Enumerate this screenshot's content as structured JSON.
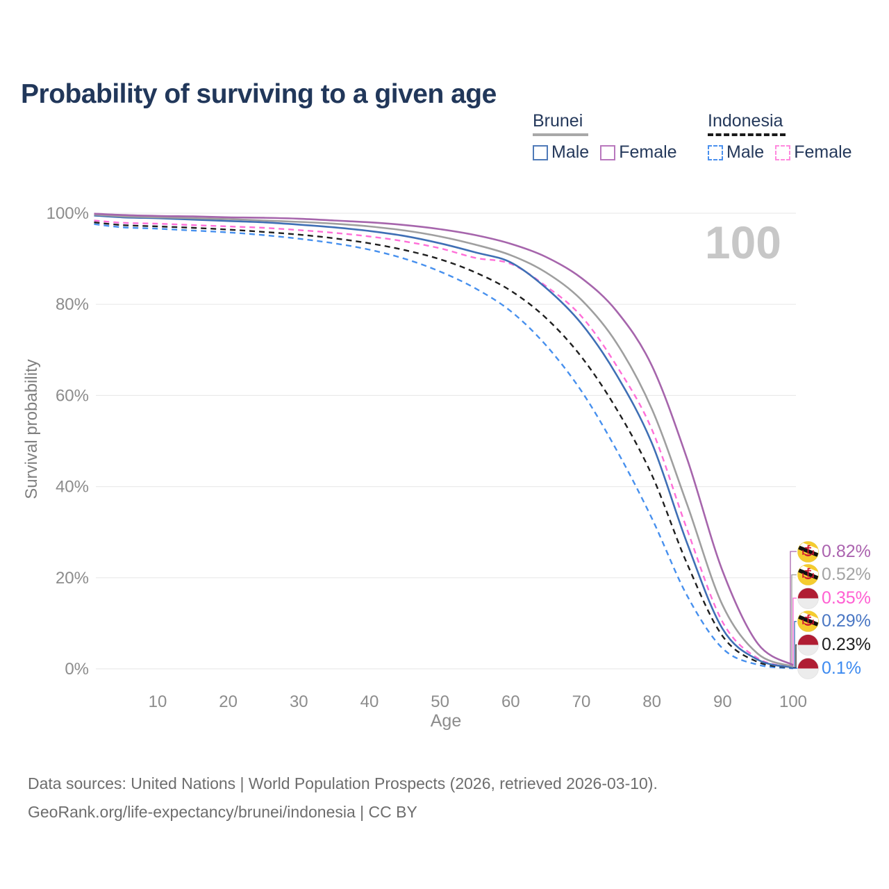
{
  "title": "Probability of surviving to a given age",
  "watermark": "100",
  "legend": {
    "groups": [
      {
        "name": "Brunei",
        "line_style": "solid",
        "line_color": "#a8a8a8",
        "underline_width": 80,
        "items": [
          {
            "label": "Male",
            "color": "#4f7ab8",
            "dashed": false
          },
          {
            "label": "Female",
            "color": "#b877bd",
            "dashed": false
          }
        ]
      },
      {
        "name": "Indonesia",
        "line_style": "dashed",
        "line_color": "#1a1a1a",
        "underline_width": 112,
        "items": [
          {
            "label": "Male",
            "color": "#4a90ee",
            "dashed": true
          },
          {
            "label": "Female",
            "color": "#ff8ade",
            "dashed": true
          }
        ]
      }
    ]
  },
  "chart_data": {
    "type": "line",
    "title": "Probability of surviving to a given age",
    "xlabel": "Age",
    "ylabel": "Survival probability",
    "xlim": [
      1,
      100
    ],
    "ylim": [
      0,
      100
    ],
    "grid": true,
    "legend_position": "top-right",
    "x_ticks": [
      10,
      20,
      30,
      40,
      50,
      60,
      70,
      80,
      90,
      100
    ],
    "y_ticks": [
      {
        "value": 0,
        "label": "0%"
      },
      {
        "value": 20,
        "label": "20%"
      },
      {
        "value": 40,
        "label": "40%"
      },
      {
        "value": 60,
        "label": "60%"
      },
      {
        "value": 80,
        "label": "80%"
      },
      {
        "value": 100,
        "label": "100%"
      }
    ],
    "x": [
      1,
      5,
      10,
      15,
      20,
      25,
      30,
      35,
      40,
      45,
      50,
      55,
      60,
      65,
      70,
      75,
      80,
      85,
      90,
      95,
      100
    ],
    "series": [
      {
        "name": "Indonesia Male",
        "country": "Indonesia",
        "sex": "Male",
        "color": "#4790ee",
        "dashed": true,
        "flag": "indonesia",
        "end_label": "0.1%",
        "end_label_color": "#3c8af0",
        "values": [
          97.6,
          96.9,
          96.6,
          96.2,
          95.8,
          95.2,
          94.4,
          93.4,
          92.0,
          90.0,
          87.2,
          83.5,
          78.5,
          71.0,
          61.0,
          48.0,
          33.0,
          16.0,
          4.5,
          0.9,
          0.1
        ]
      },
      {
        "name": "Indonesia",
        "country": "Indonesia",
        "sex": "Both",
        "color": "#1f1f1f",
        "dashed": true,
        "flag": "indonesia",
        "end_label": "0.23%",
        "end_label_color": "#202020",
        "values": [
          98.0,
          97.4,
          97.1,
          96.8,
          96.4,
          95.9,
          95.3,
          94.5,
          93.4,
          91.9,
          89.9,
          87.0,
          83.0,
          77.0,
          68.5,
          57.0,
          42.5,
          23.0,
          7.2,
          1.5,
          0.23
        ]
      },
      {
        "name": "Indonesia Female",
        "country": "Indonesia",
        "sex": "Female",
        "color": "#ff6ed8",
        "dashed": true,
        "flag": "indonesia",
        "end_label": "0.35%",
        "end_label_color": "#ff5fd2",
        "values": [
          98.4,
          97.9,
          97.7,
          97.4,
          97.1,
          96.8,
          96.3,
          95.7,
          94.9,
          93.8,
          92.3,
          90.2,
          88.9,
          84.0,
          77.4,
          66.5,
          52.5,
          30.5,
          10.3,
          2.3,
          0.35
        ]
      },
      {
        "name": "Brunei Male",
        "country": "Brunei",
        "sex": "Male",
        "color": "#3f6fb5",
        "dashed": false,
        "flag": "brunei",
        "end_label": "0.29%",
        "end_label_color": "#4a77c4",
        "values": [
          99.5,
          99.1,
          98.9,
          98.6,
          98.3,
          98.0,
          97.5,
          96.9,
          96.1,
          95.0,
          93.4,
          91.4,
          89.2,
          83.6,
          75.8,
          64.5,
          49.5,
          27.5,
          8.8,
          2.0,
          0.29
        ]
      },
      {
        "name": "Brunei",
        "country": "Brunei",
        "sex": "Both",
        "color": "#9f9f9f",
        "dashed": false,
        "flag": "brunei",
        "end_label": "0.52%",
        "end_label_color": "#a3a3a3",
        "values": [
          99.7,
          99.3,
          99.1,
          98.9,
          98.7,
          98.4,
          98.1,
          97.7,
          97.1,
          96.2,
          94.9,
          93.1,
          90.8,
          87.0,
          81.0,
          71.5,
          57.0,
          36.0,
          14.0,
          3.3,
          0.52
        ]
      },
      {
        "name": "Brunei Female",
        "country": "Brunei",
        "sex": "Female",
        "color": "#a665ac",
        "dashed": false,
        "flag": "brunei",
        "end_label": "0.82%",
        "end_label_color": "#ab63af",
        "values": [
          99.9,
          99.6,
          99.4,
          99.3,
          99.1,
          99.0,
          98.8,
          98.4,
          98.0,
          97.4,
          96.5,
          95.2,
          93.3,
          90.4,
          85.8,
          78.5,
          66.5,
          46.0,
          21.5,
          5.5,
          0.82
        ]
      }
    ]
  },
  "flag_colors": {
    "brunei": {
      "field": "#f5cc2f",
      "stripe_top": "#ffffff",
      "stripe_bottom": "#111111",
      "emblem": "#cf1430"
    },
    "indonesia": {
      "top": "#b01d33",
      "bottom": "#ececec"
    }
  },
  "footer": {
    "line1": "Data sources: United Nations | World Population Prospects (2026, retrieved 2026-03-10).",
    "line2": "GeoRank.org/life-expectancy/brunei/indonesia | CC BY"
  }
}
